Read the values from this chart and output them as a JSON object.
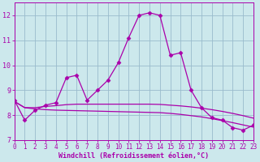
{
  "xlabel": "Windchill (Refroidissement éolien,°C)",
  "x": [
    0,
    1,
    2,
    3,
    4,
    5,
    6,
    7,
    8,
    9,
    10,
    11,
    12,
    13,
    14,
    15,
    16,
    17,
    18,
    19,
    20,
    21,
    22,
    23
  ],
  "line1": [
    8.6,
    7.8,
    8.2,
    8.4,
    8.5,
    9.5,
    9.6,
    8.6,
    9.0,
    9.4,
    10.1,
    11.1,
    12.0,
    12.1,
    12.0,
    10.4,
    10.5,
    9.0,
    8.3,
    7.9,
    7.8,
    7.5,
    7.4,
    7.6
  ],
  "line2": [
    8.55,
    8.3,
    8.3,
    8.35,
    8.38,
    8.42,
    8.44,
    8.44,
    8.44,
    8.44,
    8.44,
    8.44,
    8.44,
    8.44,
    8.43,
    8.4,
    8.37,
    8.33,
    8.28,
    8.22,
    8.15,
    8.07,
    7.98,
    7.88
  ],
  "line3": [
    8.55,
    8.3,
    8.25,
    8.22,
    8.2,
    8.19,
    8.18,
    8.17,
    8.16,
    8.15,
    8.14,
    8.13,
    8.12,
    8.11,
    8.1,
    8.07,
    8.03,
    7.98,
    7.93,
    7.86,
    7.78,
    7.7,
    7.61,
    7.52
  ],
  "line_color": "#aa00aa",
  "bg_color": "#cce8ec",
  "grid_color": "#99bbcc",
  "ylim": [
    7,
    12.5
  ],
  "xlim": [
    0,
    23
  ],
  "yticks": [
    7,
    8,
    9,
    10,
    11,
    12
  ],
  "xticks": [
    0,
    1,
    2,
    3,
    4,
    5,
    6,
    7,
    8,
    9,
    10,
    11,
    12,
    13,
    14,
    15,
    16,
    17,
    18,
    19,
    20,
    21,
    22,
    23
  ],
  "marker": "D",
  "markersize": 2.5,
  "linewidth": 0.9,
  "tick_fontsize": 5.5,
  "xlabel_fontsize": 6.0
}
